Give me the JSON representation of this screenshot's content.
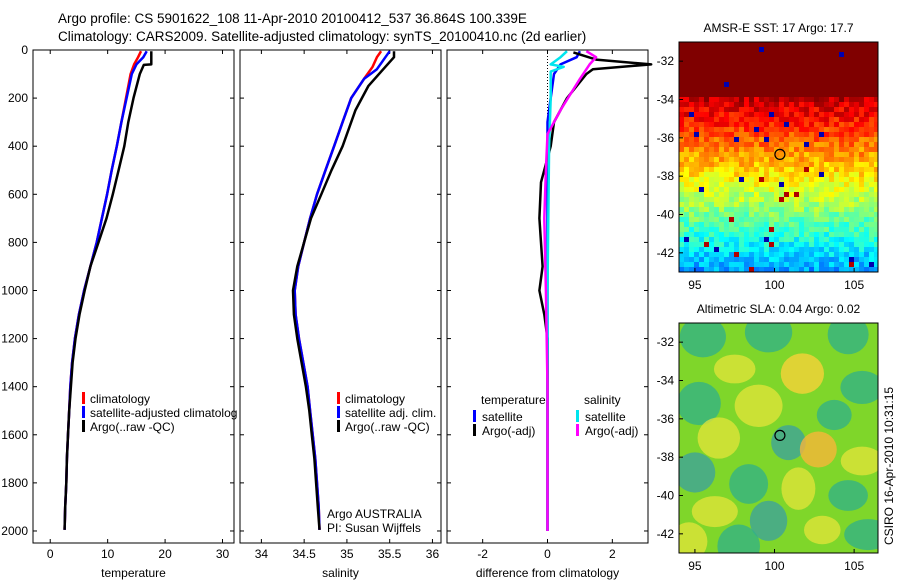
{
  "title": {
    "line1": "Argo profile: CS 5901622_108 11-Apr-2010 20100412_537 36.864S 100.339E",
    "line2": "Climatology: CARS2009. Satellite-adjusted climatology: synTS_20100410.nc (2d earlier)"
  },
  "side_stamp": "CSIRO 16-Apr-2010 10:31:15",
  "chart_data": [
    {
      "type": "line",
      "id": "temperature",
      "xlabel": "temperature",
      "ylabel": "",
      "xlim": [
        -3,
        32
      ],
      "ylim": [
        2050,
        0
      ],
      "xticks": [
        0,
        10,
        20,
        30
      ],
      "yticks": [
        0,
        200,
        400,
        600,
        800,
        1000,
        1200,
        1400,
        1600,
        1800,
        2000
      ],
      "legend": [
        {
          "label": "climatology",
          "color": "#ff0000"
        },
        {
          "label": "satellite-adjusted climatolog",
          "color": "#0000ff"
        },
        {
          "label": "Argo(..raw -QC)",
          "color": "#000000"
        }
      ],
      "series": [
        {
          "name": "climatology",
          "color": "#ff0000",
          "points": [
            [
              15.8,
              5
            ],
            [
              15.3,
              30
            ],
            [
              14.6,
              60
            ],
            [
              14.0,
              100
            ],
            [
              13.2,
              200
            ],
            [
              12.4,
              300
            ],
            [
              11.6,
              400
            ],
            [
              10.7,
              500
            ],
            [
              9.9,
              600
            ],
            [
              9.0,
              700
            ],
            [
              8.1,
              800
            ],
            [
              7.0,
              900
            ],
            [
              5.9,
              1000
            ],
            [
              5.0,
              1100
            ],
            [
              4.3,
              1200
            ],
            [
              3.8,
              1300
            ],
            [
              3.5,
              1400
            ],
            [
              3.3,
              1500
            ],
            [
              3.1,
              1600
            ],
            [
              2.9,
              1700
            ],
            [
              2.8,
              1800
            ],
            [
              2.6,
              1900
            ],
            [
              2.5,
              1995
            ]
          ]
        },
        {
          "name": "satellite-adjusted climatology",
          "color": "#0000ff",
          "points": [
            [
              16.8,
              5
            ],
            [
              16.2,
              30
            ],
            [
              15.0,
              60
            ],
            [
              14.2,
              100
            ],
            [
              13.3,
              200
            ],
            [
              12.4,
              300
            ],
            [
              11.6,
              400
            ],
            [
              10.7,
              500
            ],
            [
              9.9,
              600
            ],
            [
              9.0,
              700
            ],
            [
              8.1,
              800
            ],
            [
              7.0,
              900
            ],
            [
              5.9,
              1000
            ],
            [
              5.0,
              1100
            ],
            [
              4.3,
              1200
            ],
            [
              3.8,
              1300
            ],
            [
              3.5,
              1400
            ],
            [
              3.3,
              1500
            ],
            [
              3.1,
              1600
            ],
            [
              2.9,
              1700
            ],
            [
              2.8,
              1800
            ],
            [
              2.6,
              1900
            ],
            [
              2.5,
              1995
            ]
          ]
        },
        {
          "name": "Argo(..raw -QC)",
          "color": "#000000",
          "points": [
            [
              17.6,
              5
            ],
            [
              17.6,
              60
            ],
            [
              16.3,
              62
            ],
            [
              15.6,
              100
            ],
            [
              14.5,
              200
            ],
            [
              13.6,
              300
            ],
            [
              12.9,
              400
            ],
            [
              11.9,
              500
            ],
            [
              10.9,
              600
            ],
            [
              9.8,
              700
            ],
            [
              8.4,
              800
            ],
            [
              7.0,
              900
            ],
            [
              6.0,
              1000
            ],
            [
              5.1,
              1100
            ],
            [
              4.4,
              1200
            ],
            [
              3.9,
              1300
            ],
            [
              3.6,
              1400
            ],
            [
              3.3,
              1500
            ],
            [
              3.1,
              1600
            ],
            [
              2.9,
              1700
            ],
            [
              2.8,
              1800
            ],
            [
              2.6,
              1900
            ],
            [
              2.5,
              1995
            ]
          ]
        }
      ]
    },
    {
      "type": "line",
      "id": "salinity",
      "xlabel": "salinity",
      "ylabel": "",
      "xlim": [
        33.75,
        36.1
      ],
      "ylim": [
        2050,
        0
      ],
      "xticks": [
        34,
        34.5,
        35,
        35.5,
        36
      ],
      "xticklabels": [
        "34",
        "34.5",
        "35",
        "35.5",
        "36"
      ],
      "annotation": [
        "Argo AUSTRALIA",
        "PI: Susan Wijffels"
      ],
      "legend": [
        {
          "label": "climatology",
          "color": "#ff0000"
        },
        {
          "label": "satellite adj. clim.",
          "color": "#0000ff"
        },
        {
          "label": "Argo(..raw -QC)",
          "color": "#000000"
        }
      ],
      "series": [
        {
          "name": "climatology",
          "color": "#ff0000",
          "points": [
            [
              35.4,
              5
            ],
            [
              35.35,
              30
            ],
            [
              35.3,
              70
            ],
            [
              35.2,
              120
            ],
            [
              35.05,
              200
            ],
            [
              34.95,
              300
            ],
            [
              34.85,
              400
            ],
            [
              34.75,
              500
            ],
            [
              34.65,
              600
            ],
            [
              34.57,
              700
            ],
            [
              34.5,
              800
            ],
            [
              34.43,
              900
            ],
            [
              34.39,
              1000
            ],
            [
              34.4,
              1100
            ],
            [
              34.44,
              1200
            ],
            [
              34.49,
              1300
            ],
            [
              34.54,
              1400
            ],
            [
              34.57,
              1500
            ],
            [
              34.6,
              1600
            ],
            [
              34.63,
              1700
            ],
            [
              34.65,
              1800
            ],
            [
              34.67,
              1900
            ],
            [
              34.68,
              1995
            ]
          ]
        },
        {
          "name": "satellite adj. clim.",
          "color": "#0000ff",
          "points": [
            [
              35.5,
              5
            ],
            [
              35.45,
              30
            ],
            [
              35.35,
              80
            ],
            [
              35.2,
              120
            ],
            [
              35.05,
              200
            ],
            [
              34.95,
              300
            ],
            [
              34.85,
              400
            ],
            [
              34.75,
              500
            ],
            [
              34.65,
              600
            ],
            [
              34.57,
              700
            ],
            [
              34.5,
              800
            ],
            [
              34.43,
              900
            ],
            [
              34.39,
              1000
            ],
            [
              34.4,
              1100
            ],
            [
              34.44,
              1200
            ],
            [
              34.49,
              1300
            ],
            [
              34.54,
              1400
            ],
            [
              34.57,
              1500
            ],
            [
              34.6,
              1600
            ],
            [
              34.63,
              1700
            ],
            [
              34.65,
              1800
            ],
            [
              34.67,
              1900
            ],
            [
              34.68,
              1995
            ]
          ]
        },
        {
          "name": "Argo(..raw -QC)",
          "color": "#000000",
          "points": [
            [
              35.55,
              5
            ],
            [
              35.55,
              30
            ],
            [
              35.45,
              70
            ],
            [
              35.25,
              150
            ],
            [
              35.1,
              250
            ],
            [
              34.95,
              400
            ],
            [
              34.82,
              500
            ],
            [
              34.7,
              600
            ],
            [
              34.58,
              700
            ],
            [
              34.5,
              800
            ],
            [
              34.42,
              900
            ],
            [
              34.37,
              1000
            ],
            [
              34.38,
              1100
            ],
            [
              34.42,
              1200
            ],
            [
              34.47,
              1300
            ],
            [
              34.52,
              1400
            ],
            [
              34.56,
              1500
            ],
            [
              34.59,
              1600
            ],
            [
              34.62,
              1700
            ],
            [
              34.64,
              1800
            ],
            [
              34.66,
              1900
            ],
            [
              34.68,
              1995
            ]
          ]
        }
      ]
    },
    {
      "type": "line",
      "id": "difference",
      "xlabel": "difference from climatology",
      "ylabel": "",
      "xlim": [
        -3.1,
        3.1
      ],
      "ylim": [
        2050,
        0
      ],
      "xticks": [
        -2,
        0,
        2
      ],
      "legend_columns": [
        {
          "header": "temperature",
          "items": [
            {
              "label": "satellite",
              "color": "#0000ff"
            },
            {
              "label": "Argo(-adj)",
              "color": "#000000"
            }
          ]
        },
        {
          "header": "salinity",
          "items": [
            {
              "label": "satellite",
              "color": "#00e5ee"
            },
            {
              "label": "Argo(-adj)",
              "color": "#ff00ff"
            }
          ]
        }
      ],
      "series": [
        {
          "name": "temperature satellite",
          "color": "#0000ff",
          "points": [
            [
              1.0,
              5
            ],
            [
              0.9,
              30
            ],
            [
              0.4,
              60
            ],
            [
              0.2,
              100
            ],
            [
              0.1,
              200
            ],
            [
              0.0,
              300
            ],
            [
              0.0,
              2000
            ]
          ]
        },
        {
          "name": "temperature Argo(-adj)",
          "color": "#000000",
          "points": [
            [
              0.8,
              10
            ],
            [
              1.5,
              40
            ],
            [
              3.2,
              60
            ],
            [
              1.4,
              80
            ],
            [
              1.2,
              100
            ],
            [
              0.6,
              200
            ],
            [
              0.2,
              300
            ],
            [
              0.1,
              400
            ],
            [
              -0.2,
              550
            ],
            [
              -0.25,
              700
            ],
            [
              -0.2,
              800
            ],
            [
              -0.15,
              900
            ],
            [
              -0.25,
              1000
            ],
            [
              -0.1,
              1100
            ],
            [
              0.0,
              1200
            ],
            [
              0.0,
              2000
            ]
          ]
        },
        {
          "name": "salinity satellite",
          "color": "#00e5ee",
          "points": [
            [
              0.6,
              5
            ],
            [
              0.4,
              30
            ],
            [
              0.1,
              60
            ],
            [
              0.5,
              70
            ],
            [
              0.1,
              90
            ],
            [
              0.1,
              200
            ],
            [
              0.05,
              400
            ],
            [
              0.0,
              1000
            ],
            [
              0.0,
              2000
            ]
          ]
        },
        {
          "name": "salinity Argo(-adj)",
          "color": "#ff00ff",
          "points": [
            [
              1.2,
              5
            ],
            [
              1.5,
              30
            ],
            [
              1.3,
              60
            ],
            [
              1.0,
              120
            ],
            [
              0.4,
              250
            ],
            [
              0.0,
              350
            ],
            [
              -0.05,
              500
            ],
            [
              -0.1,
              700
            ],
            [
              -0.05,
              1000
            ],
            [
              0.0,
              1400
            ],
            [
              0.0,
              2000
            ]
          ]
        }
      ]
    },
    {
      "type": "heatmap",
      "id": "sst_map",
      "title": "AMSR-E SST: 17 Argo: 17.7",
      "xlim": [
        94,
        106.5
      ],
      "ylim": [
        -43,
        -31
      ],
      "xticks": [
        95,
        100,
        105
      ],
      "yticks": [
        -32,
        -34,
        -36,
        -38,
        -40,
        -42
      ],
      "marker": [
        100.339,
        -36.864
      ]
    },
    {
      "type": "heatmap",
      "id": "sla_map",
      "title": "Altimetric SLA: 0.04 Argo: 0.02",
      "xlim": [
        94,
        106.5
      ],
      "ylim": [
        -43,
        -31
      ],
      "xticks": [
        95,
        100,
        105
      ],
      "yticks": [
        -32,
        -34,
        -36,
        -38,
        -40,
        -42
      ],
      "marker": [
        100.339,
        -36.864
      ]
    }
  ]
}
